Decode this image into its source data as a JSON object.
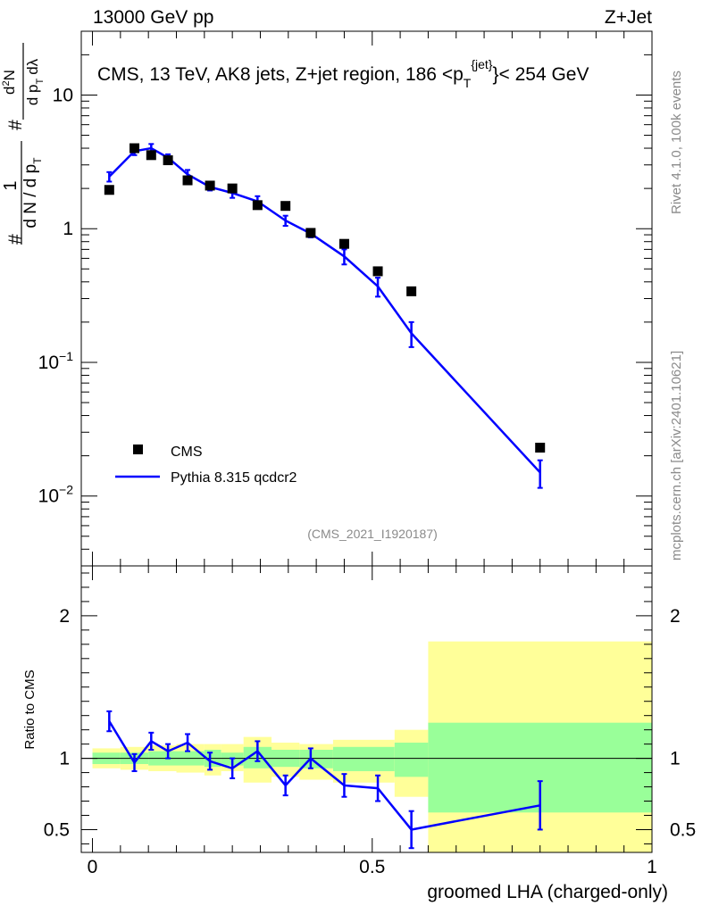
{
  "header": {
    "left": "13000 GeV pp",
    "right": "Z+Jet"
  },
  "side_labels": {
    "rivet": "Rivet 4.1.0,  100k events",
    "mcplots": "mcplots.cern.ch [arXiv:2401.10621]"
  },
  "chart_data": [
    {
      "type": "scatter",
      "panel": "main",
      "title_parts": [
        "CMS, 13 TeV, AK8 jets, Z+jet region, 186 <p",
        "T",
        "{jet}",
        "}< 254 GeV"
      ],
      "analysis_id": "(CMS_2021_I1920187)",
      "ylabel_parts": [
        "#",
        "1",
        "d N / d p",
        "T",
        "#",
        "d",
        "2",
        "N",
        "d p",
        "T",
        "d",
        "λ"
      ],
      "yscale": "log",
      "ylim": [
        0.003,
        30
      ],
      "xlim": [
        -0.02,
        1.0
      ],
      "y_ticks": [
        {
          "value": 10,
          "label": "10",
          "exp": ""
        },
        {
          "value": 1,
          "label": "1",
          "exp": ""
        },
        {
          "value": 0.1,
          "label": "10",
          "exp": "−1"
        },
        {
          "value": 0.01,
          "label": "10",
          "exp": "−2"
        }
      ],
      "legend": {
        "position": "bottom-left",
        "entries": [
          {
            "label": "CMS",
            "marker": "square",
            "color": "#000000"
          },
          {
            "label": "Pythia 8.315 qcdcr2",
            "marker": "line",
            "color": "#0000ff"
          }
        ]
      },
      "series": [
        {
          "name": "CMS",
          "color": "#000000",
          "x": [
            0.03,
            0.075,
            0.105,
            0.135,
            0.17,
            0.21,
            0.25,
            0.295,
            0.345,
            0.39,
            0.45,
            0.51,
            0.57,
            0.8
          ],
          "y": [
            1.95,
            4.0,
            3.55,
            3.25,
            2.3,
            2.1,
            2.0,
            1.5,
            1.48,
            0.93,
            0.77,
            0.48,
            0.34,
            0.023
          ]
        },
        {
          "name": "Pythia 8.315 qcdcr2",
          "color": "#0000ff",
          "x": [
            0.03,
            0.075,
            0.105,
            0.135,
            0.17,
            0.21,
            0.25,
            0.295,
            0.345,
            0.39,
            0.45,
            0.51,
            0.57,
            0.8
          ],
          "y": [
            2.45,
            3.8,
            4.0,
            3.4,
            2.55,
            2.05,
            1.85,
            1.6,
            1.15,
            0.92,
            0.62,
            0.37,
            0.165,
            0.015
          ],
          "yerr": [
            0.2,
            0.25,
            0.3,
            0.2,
            0.2,
            0.12,
            0.15,
            0.15,
            0.1,
            0.06,
            0.08,
            0.06,
            0.035,
            0.0035
          ]
        }
      ]
    },
    {
      "type": "scatter",
      "panel": "ratio",
      "ylabel": "Ratio to CMS",
      "xlabel": "groomed LHA (charged-only)",
      "ylim": [
        0.34,
        2.35
      ],
      "xlim": [
        -0.02,
        1.0
      ],
      "y_ticks": [
        0.5,
        1,
        2
      ],
      "y_tick_labels": [
        "0.5",
        "1",
        "2"
      ],
      "x_ticks": [
        0,
        0.5,
        1
      ],
      "x_tick_labels": [
        "0",
        "0.5",
        "1"
      ],
      "reference_line": 1,
      "uncertainty_bands": {
        "edges": [
          0,
          0.05,
          0.1,
          0.15,
          0.2,
          0.23,
          0.27,
          0.32,
          0.37,
          0.43,
          0.54,
          0.6,
          1.0
        ],
        "yellow": [
          [
            0.93,
            1.07
          ],
          [
            0.92,
            1.08
          ],
          [
            0.91,
            1.09
          ],
          [
            0.9,
            1.1
          ],
          [
            0.88,
            1.1
          ],
          [
            0.91,
            1.1
          ],
          [
            0.83,
            1.15
          ],
          [
            0.87,
            1.11
          ],
          [
            0.85,
            1.1
          ],
          [
            0.83,
            1.13
          ],
          [
            0.73,
            1.2
          ],
          [
            0.3,
            1.82
          ],
          [
            0.42,
            1.64
          ]
        ],
        "green": [
          [
            0.96,
            1.04
          ],
          [
            0.96,
            1.04
          ],
          [
            0.95,
            1.05
          ],
          [
            0.95,
            1.05
          ],
          [
            0.94,
            1.06
          ],
          [
            0.95,
            1.04
          ],
          [
            0.93,
            1.08
          ],
          [
            0.94,
            1.06
          ],
          [
            0.93,
            1.06
          ],
          [
            0.91,
            1.08
          ],
          [
            0.87,
            1.11
          ],
          [
            0.62,
            1.25
          ],
          [
            0.77,
            1.18
          ]
        ],
        "yellow_color": "#ffff99",
        "green_color": "#99ff99"
      },
      "series": [
        {
          "name": "Pythia 8.315 qcdcr2",
          "color": "#0000ff",
          "x": [
            0.03,
            0.075,
            0.105,
            0.135,
            0.17,
            0.21,
            0.25,
            0.295,
            0.345,
            0.39,
            0.45,
            0.51,
            0.57,
            0.8
          ],
          "y": [
            1.26,
            0.97,
            1.12,
            1.05,
            1.11,
            0.98,
            0.93,
            1.05,
            0.81,
            1.0,
            0.81,
            0.79,
            0.5,
            0.67
          ],
          "yerr": [
            0.07,
            0.06,
            0.06,
            0.05,
            0.06,
            0.06,
            0.07,
            0.07,
            0.07,
            0.07,
            0.08,
            0.09,
            0.13,
            0.17
          ]
        }
      ]
    }
  ]
}
